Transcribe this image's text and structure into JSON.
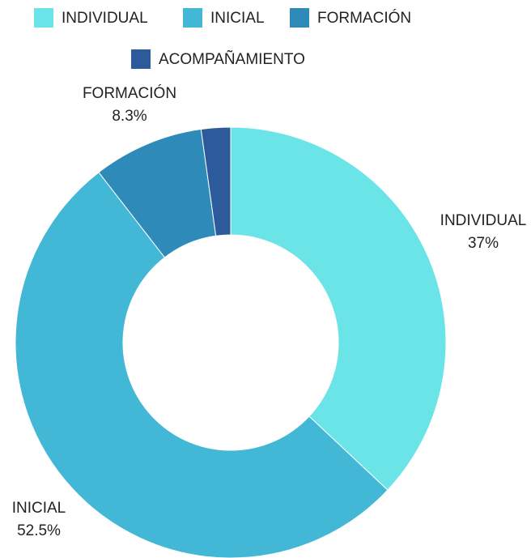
{
  "chart_data": {
    "type": "donut",
    "categories": [
      "INDIVIDUAL",
      "INICIAL",
      "FORMACIÓN",
      "ACOMPAÑAMIENTO"
    ],
    "values": [
      37,
      52.5,
      8.3,
      2.2
    ],
    "value_labels": [
      "37%",
      "52.5%",
      "8.3%",
      null
    ],
    "colors": [
      "#6be4e8",
      "#43b8d6",
      "#2e8ab8",
      "#2c5a9a"
    ],
    "legend": "top"
  }
}
